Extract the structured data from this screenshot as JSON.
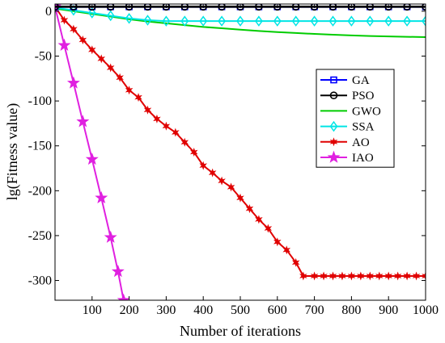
{
  "chart_data": {
    "type": "line",
    "title": "",
    "xlabel": "Number of iterations",
    "ylabel": "lg(Fitness value)",
    "xlim": [
      0,
      1000
    ],
    "ylim": [
      -322,
      8
    ],
    "xticks": [
      100,
      200,
      300,
      400,
      500,
      600,
      700,
      800,
      900,
      1000
    ],
    "yticks": [
      0,
      -50,
      -100,
      -150,
      -200,
      -250,
      -300
    ],
    "grid": false,
    "legend_position": "right",
    "series": [
      {
        "name": "GA",
        "color": "#0000ff",
        "marker": "square",
        "x": [
          0,
          50,
          100,
          150,
          200,
          250,
          300,
          350,
          400,
          450,
          500,
          550,
          600,
          650,
          700,
          750,
          800,
          850,
          900,
          950,
          1000
        ],
        "y": [
          5,
          5,
          5,
          5,
          5,
          5,
          5,
          5,
          5,
          5,
          5,
          5,
          5,
          5,
          5,
          5,
          5,
          5,
          5,
          5,
          5
        ]
      },
      {
        "name": "PSO",
        "color": "#000000",
        "marker": "circle",
        "x": [
          0,
          50,
          100,
          150,
          200,
          250,
          300,
          350,
          400,
          450,
          500,
          550,
          600,
          650,
          700,
          750,
          800,
          850,
          900,
          950,
          1000
        ],
        "y": [
          5,
          5,
          5,
          5,
          5,
          5,
          5,
          5,
          5,
          5,
          5,
          5,
          5,
          5,
          5,
          5,
          5,
          5,
          5,
          5,
          5
        ]
      },
      {
        "name": "GWO",
        "color": "#00cc00",
        "marker": "none",
        "x": [
          0,
          50,
          100,
          150,
          200,
          250,
          300,
          350,
          400,
          450,
          500,
          550,
          600,
          650,
          700,
          750,
          800,
          850,
          900,
          950,
          1000
        ],
        "y": [
          3,
          0,
          -3,
          -6,
          -9,
          -11.5,
          -13.5,
          -15.5,
          -17.5,
          -19,
          -20.5,
          -22,
          -23.2,
          -24.3,
          -25.3,
          -26.2,
          -27,
          -27.6,
          -28.1,
          -28.5,
          -28.9
        ]
      },
      {
        "name": "SSA",
        "color": "#00e5e5",
        "marker": "diamond",
        "x": [
          0,
          50,
          100,
          150,
          200,
          250,
          300,
          350,
          400,
          450,
          500,
          550,
          600,
          650,
          700,
          750,
          800,
          850,
          900,
          950,
          1000
        ],
        "y": [
          4,
          1,
          -2,
          -5,
          -8,
          -10,
          -11,
          -11,
          -11,
          -11,
          -11,
          -11,
          -11,
          -11,
          -11,
          -11,
          -11,
          -11,
          -11,
          -11,
          -11
        ]
      },
      {
        "name": "AO",
        "color": "#e00000",
        "marker": "star6",
        "x": [
          0,
          25,
          50,
          75,
          100,
          125,
          150,
          175,
          200,
          225,
          250,
          275,
          300,
          325,
          350,
          375,
          400,
          425,
          450,
          475,
          500,
          525,
          550,
          575,
          600,
          625,
          650,
          670,
          700,
          725,
          750,
          775,
          800,
          825,
          850,
          875,
          900,
          925,
          950,
          975,
          1000
        ],
        "y": [
          5,
          -10,
          -20,
          -32,
          -43,
          -53,
          -63,
          -74,
          -88,
          -96,
          -110,
          -120,
          -128,
          -135,
          -146,
          -157,
          -172,
          -180,
          -189,
          -196,
          -208,
          -220,
          -232,
          -242,
          -257,
          -266,
          -280,
          -295,
          -295,
          -295,
          -295,
          -295,
          -295,
          -295,
          -295,
          -295,
          -295,
          -295,
          -295,
          -295,
          -295
        ]
      },
      {
        "name": "IAO",
        "color": "#e020e0",
        "marker": "star5",
        "x": [
          0,
          25,
          50,
          75,
          100,
          125,
          150,
          170,
          185
        ],
        "y": [
          5,
          -38,
          -80,
          -123,
          -165,
          -208,
          -252,
          -290,
          -322
        ]
      }
    ]
  }
}
